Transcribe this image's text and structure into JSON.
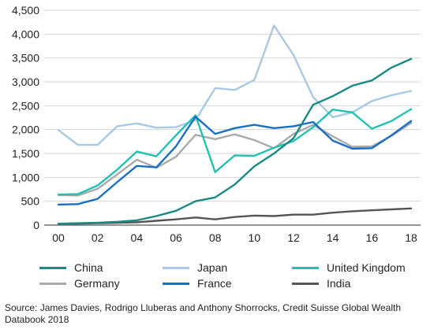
{
  "chart_data": {
    "type": "line",
    "x": [
      "00",
      "01",
      "02",
      "03",
      "04",
      "05",
      "06",
      "07",
      "08",
      "09",
      "10",
      "11",
      "12",
      "13",
      "14",
      "15",
      "16",
      "17",
      "18"
    ],
    "xtick_labels": [
      "00",
      "02",
      "04",
      "06",
      "08",
      "10",
      "12",
      "14",
      "16",
      "18"
    ],
    "ytick_labels": [
      "0",
      "500",
      "1,000",
      "1,500",
      "2,000",
      "2,500",
      "3,000",
      "3,500",
      "4,000",
      "4,500"
    ],
    "ylim": [
      0,
      4500
    ],
    "grid": "horizontal",
    "legend_position": "bottom",
    "series": [
      {
        "name": "China",
        "color": "#1b8a82",
        "values": [
          30,
          40,
          50,
          70,
          100,
          190,
          300,
          500,
          580,
          850,
          1230,
          1500,
          1820,
          2520,
          2700,
          2920,
          3030,
          3300,
          3480
        ]
      },
      {
        "name": "Japan",
        "color": "#a9c8e3",
        "values": [
          1990,
          1680,
          1680,
          2070,
          2130,
          2040,
          2050,
          2200,
          2870,
          2830,
          3040,
          4180,
          3560,
          2680,
          2260,
          2360,
          2600,
          2720,
          2810
        ]
      },
      {
        "name": "United Kingdom",
        "color": "#23c1b1",
        "values": [
          640,
          650,
          830,
          1160,
          1540,
          1440,
          1880,
          2300,
          1110,
          1460,
          1450,
          1620,
          1760,
          2050,
          2420,
          2360,
          2020,
          2180,
          2430
        ]
      },
      {
        "name": "Germany",
        "color": "#aaaaaa",
        "values": [
          630,
          620,
          760,
          1060,
          1370,
          1200,
          1430,
          1890,
          1800,
          1900,
          1780,
          1610,
          1910,
          2100,
          1860,
          1640,
          1650,
          1870,
          2140
        ]
      },
      {
        "name": "France",
        "color": "#1a6fc4",
        "values": [
          430,
          440,
          550,
          900,
          1240,
          1210,
          1650,
          2270,
          1910,
          2030,
          2100,
          2030,
          2070,
          2160,
          1770,
          1600,
          1610,
          1880,
          2180
        ]
      },
      {
        "name": "India",
        "color": "#555555",
        "values": [
          30,
          30,
          40,
          50,
          60,
          90,
          120,
          160,
          120,
          170,
          200,
          190,
          220,
          220,
          260,
          290,
          310,
          330,
          350
        ]
      }
    ]
  },
  "source": "Source: James Davies, Rodrigo Lluberas and Anthony Shorrocks, Credit Suisse Global Wealth Databook 2018"
}
